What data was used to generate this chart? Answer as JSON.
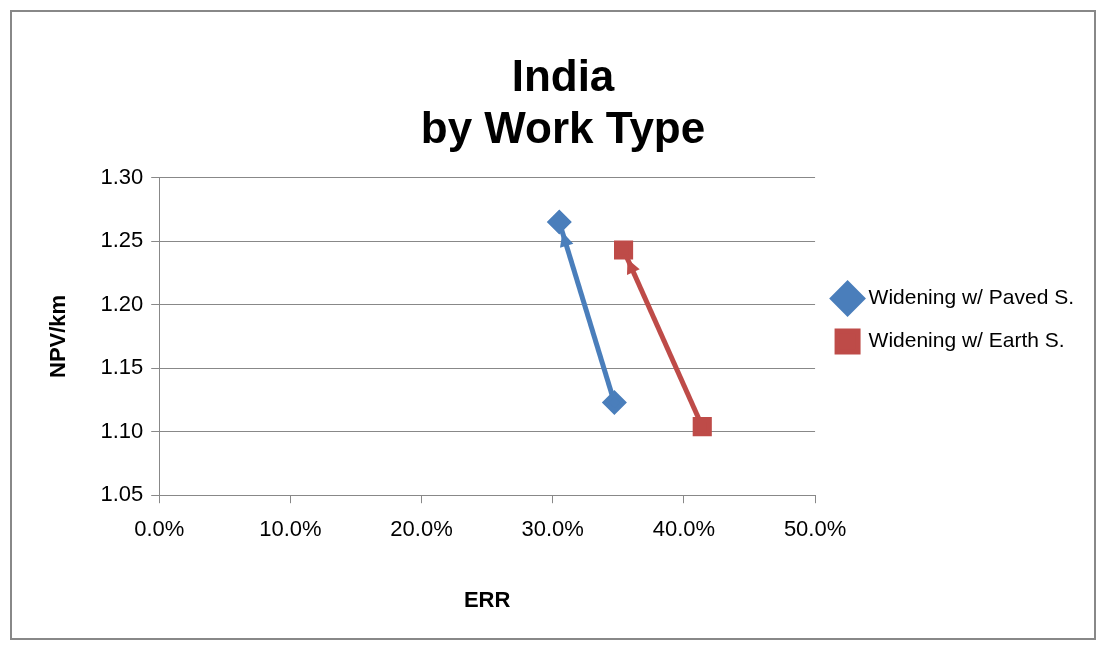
{
  "chart_data": {
    "type": "line",
    "title": "India\nby Work Type",
    "xlabel": "ERR",
    "ylabel": "NPV/km",
    "series": [
      {
        "name": "Widening w/ Paved S.",
        "color": "#4a7ebb",
        "marker": "diamond",
        "x": [
          0.347,
          0.305
        ],
        "values": [
          1.123,
          1.265
        ]
      },
      {
        "name": "Widening w/ Earth S.",
        "color": "#be4b48",
        "marker": "square",
        "x": [
          0.414,
          0.354
        ],
        "values": [
          1.104,
          1.243
        ]
      }
    ],
    "xlim": [
      0,
      0.5
    ],
    "xticks": [
      {
        "value": 0,
        "label": "0.0%"
      },
      {
        "value": 0.1,
        "label": "10.0%"
      },
      {
        "value": 0.2,
        "label": "20.0%"
      },
      {
        "value": 0.3,
        "label": "30.0%"
      },
      {
        "value": 0.4,
        "label": "40.0%"
      },
      {
        "value": 0.5,
        "label": "50.0%"
      }
    ],
    "ylim": [
      1.05,
      1.3
    ],
    "yticks": [
      {
        "value": 1.05,
        "label": "1.05"
      },
      {
        "value": 1.1,
        "label": "1.10"
      },
      {
        "value": 1.15,
        "label": "1.15"
      },
      {
        "value": 1.2,
        "label": "1.20"
      },
      {
        "value": 1.25,
        "label": "1.25"
      },
      {
        "value": 1.3,
        "label": "1.30"
      }
    ],
    "grid": "y",
    "legend": "right",
    "line_style": "solid"
  }
}
